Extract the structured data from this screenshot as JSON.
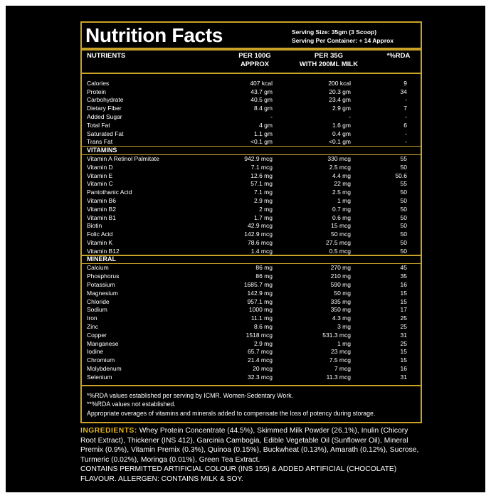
{
  "header": {
    "title": "Nutrition Facts",
    "serving_size": "Serving Size: 35gm (3 Scoop)",
    "servings_per_container": "Serving Per Container: + 14 Approx"
  },
  "columns": [
    [
      "NUTRIENTS"
    ],
    [
      "PER 100G",
      "APPROX"
    ],
    [
      "PER 35G",
      "WITH 200ML MILK"
    ],
    [
      "*%RDA"
    ]
  ],
  "sections": [
    {
      "rows": [
        [
          "Calories",
          "407 kcal",
          "200 kcal",
          "9"
        ],
        [
          "Protein",
          "43.7 gm",
          "20.3 gm",
          "34"
        ],
        [
          "Carbohydrate",
          "40.5 gm",
          "23.4 gm",
          "-"
        ],
        [
          "Dietary Fiber",
          "8.4 gm",
          "2.9 gm",
          "7"
        ],
        [
          "Added Sugar",
          "-",
          "-",
          "-"
        ],
        [
          "Total Fat",
          "4 gm",
          "1.6 gm",
          "6"
        ],
        [
          "Saturated Fat",
          "1.1 gm",
          "0.4 gm",
          "-"
        ],
        [
          "Trans Fat",
          "<0.1 gm",
          "<0.1 gm",
          "-"
        ]
      ]
    },
    {
      "title": "VITAMINS",
      "rows": [
        [
          "Vitamin A Retinol Palmitate",
          "942.9 mcg",
          "330 mcg",
          "55"
        ],
        [
          "Vitamin D",
          "7.1 mcg",
          "2.5 mcg",
          "50"
        ],
        [
          "Vitamin E",
          "12.6 mg",
          "4.4 mg",
          "50.6"
        ],
        [
          "Vitamin C",
          "57.1 mg",
          "22 mg",
          "55"
        ],
        [
          "Pantothanic Acid",
          "7.1 mg",
          "2.5 mg",
          "50"
        ],
        [
          "Vitamin B6",
          "2.9 mg",
          "1 mg",
          "50"
        ],
        [
          "Vitamin B2",
          "2 mg",
          "0.7 mg",
          "50"
        ],
        [
          "Vitamin B1",
          "1.7 mg",
          "0.6 mg",
          "50"
        ],
        [
          "Biotin",
          "42.9 mcg",
          "15 mcg",
          "50"
        ],
        [
          "Folic Acid",
          "142.9 mcg",
          "50 mcg",
          "50"
        ],
        [
          "Vitamin K",
          "78.6 mcg",
          "27.5 mcg",
          "50"
        ],
        [
          "Vitamin B12",
          "1.4 mcg",
          "0.5 mcg",
          "50"
        ]
      ]
    },
    {
      "title": "MINERAL",
      "rows": [
        [
          "Calcium",
          "86 mg",
          "270 mg",
          "45"
        ],
        [
          "Phosphorus",
          "86 mg",
          "210 mg",
          "35"
        ],
        [
          "Potassium",
          "1685.7 mg",
          "590 mg",
          "16"
        ],
        [
          "Magnesium",
          "142.9 mg",
          "50 mg",
          "15"
        ],
        [
          "Chloride",
          "957.1 mg",
          "335 mg",
          "15"
        ],
        [
          "Sodium",
          "1000 mg",
          "350 mg",
          "17"
        ],
        [
          "Iron",
          "11.1 mg",
          "4.3 mg",
          "25"
        ],
        [
          "Zinc",
          "8.6 mg",
          "3 mg",
          "25"
        ],
        [
          "Copper",
          "1518 mcg",
          "531.3 mcg",
          "31"
        ],
        [
          "Manganese",
          "2.9 mg",
          "1 mg",
          "25"
        ],
        [
          "Iodine",
          "65.7 mcg",
          "23 mcg",
          "15"
        ],
        [
          "Chromium",
          "21.4 mcg",
          "7.5 mcg",
          "15"
        ],
        [
          "Molybdenum",
          "20 mcg",
          "7 mcg",
          "16"
        ],
        [
          "Selenium",
          "32.3 mcg",
          "11.3 mcg",
          "31"
        ]
      ]
    }
  ],
  "footnotes": [
    "*%RDA values established per serving by ICMR. Women-Sedentary Work.",
    "**%RDA values not established.",
    "Appropriate overages of vitamins and minerals added to compensate the loss of potency during storage."
  ],
  "ingredients": {
    "label": "INGREDIENTS:",
    "text": "Whey Protein Concentrate (44.5%), Skimmed Milk Powder (26.1%), Inulin (Chicory Root Extract), Thickener (INS 412), Garcinia Cambogia, Edible Vegetable Oil (Sunflower Oil), Mineral Premix (0.9%), Vitamin Premix (0.3%), Quinoa (0.15%), Buckwheat (0.13%), Amarath (0.12%), Sucrose, Turmeric (0.02%), Moringa (0.01%), Green Tea Extract.",
    "contains": "CONTAINS PERMITTED ARTIFICIAL COLOUR (INS 155) & ADDED ARTIFICIAL (CHOCOLATE) FLAVOUR. ALLERGEN: CONTAINS MILK & SOY."
  }
}
